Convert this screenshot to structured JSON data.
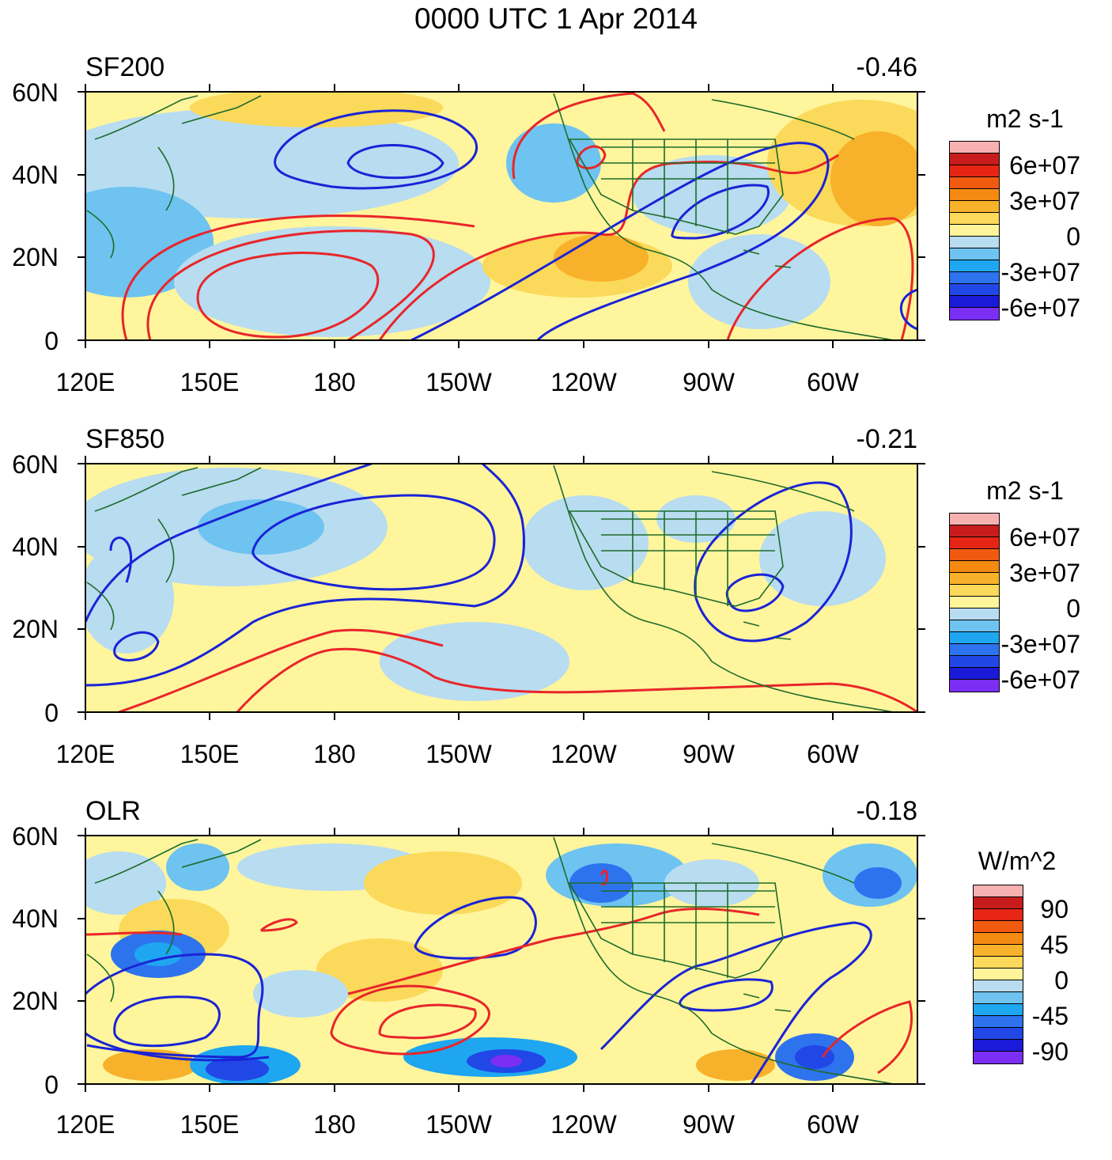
{
  "title": "0000 UTC 1 Apr 2014",
  "colors": {
    "contour_positive": "#e8262a",
    "contour_negative": "#1a23d6",
    "coastline": "#1e6b2a",
    "background_ocean": "#fff59d"
  },
  "scale": [
    {
      "color": "#7b2ff5"
    },
    {
      "color": "#1a1ad8"
    },
    {
      "color": "#2147e6"
    },
    {
      "color": "#2e73ee"
    },
    {
      "color": "#1ea7f0"
    },
    {
      "color": "#6ec3f0"
    },
    {
      "color": "#b8dcf0"
    },
    {
      "color": "#fff49a"
    },
    {
      "color": "#fbd95a"
    },
    {
      "color": "#f8b12a"
    },
    {
      "color": "#f48a12"
    },
    {
      "color": "#f05a10"
    },
    {
      "color": "#e62514"
    },
    {
      "color": "#c81c1c"
    },
    {
      "color": "#f7b1b1"
    }
  ],
  "axes": {
    "lat_labels": [
      "60N",
      "40N",
      "20N",
      "0"
    ],
    "lon_labels": [
      "120E",
      "150E",
      "180",
      "150W",
      "120W",
      "90W",
      "60W"
    ]
  },
  "panels": [
    {
      "name": "SF200",
      "correlation": "-0.46",
      "units": "m2 s-1",
      "legend_ticks": [
        "6e+07",
        "3e+07",
        "0",
        "-3e+07",
        "-6e+07"
      ]
    },
    {
      "name": "SF850",
      "correlation": "-0.21",
      "units": "m2 s-1",
      "legend_ticks": [
        "6e+07",
        "3e+07",
        "0",
        "-3e+07",
        "-6e+07"
      ]
    },
    {
      "name": "OLR",
      "correlation": "-0.18",
      "units": "W/m^2",
      "legend_ticks": [
        "90",
        "45",
        "0",
        "-45",
        "-90"
      ]
    }
  ]
}
